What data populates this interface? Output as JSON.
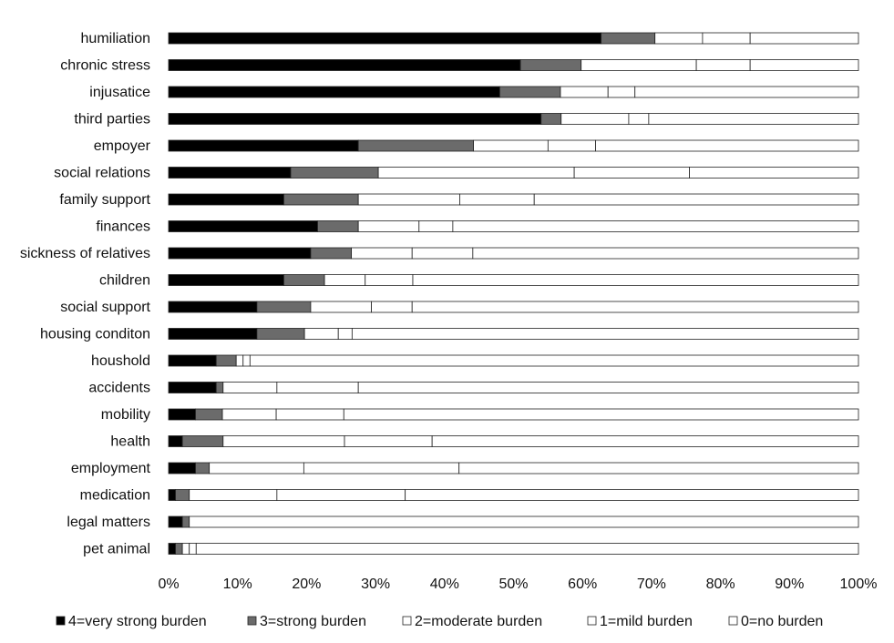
{
  "chart_data": {
    "type": "bar",
    "orientation": "horizontal",
    "stacked": "percent",
    "categories": [
      "humiliation",
      "chronic stress",
      "injusatice",
      "third parties",
      "empoyer",
      "social relations",
      "family support",
      "finances",
      "sickness of relatives",
      "children",
      "social support",
      "housing conditon",
      "houshold",
      "accidents",
      "mobility",
      "health",
      "employment",
      "medication",
      "legal matters",
      "pet animal"
    ],
    "series": [
      {
        "name": "4=very strong burden",
        "color": "#000000",
        "values": [
          62.7,
          51,
          48,
          54,
          27.5,
          17.7,
          16.7,
          21.6,
          20.6,
          16.7,
          12.8,
          12.8,
          6.9,
          6.9,
          3.9,
          2,
          3.9,
          1,
          2,
          1
        ]
      },
      {
        "name": "3=strong burden",
        "color": "#6b6b6b",
        "values": [
          7.8,
          8.8,
          8.8,
          2.9,
          16.7,
          12.7,
          10.8,
          5.9,
          5.9,
          5.9,
          7.8,
          6.9,
          2.9,
          1,
          3.9,
          5.9,
          2,
          2,
          1,
          1
        ]
      },
      {
        "name": "2=moderate burden",
        "color": "#ffffff",
        "values": [
          6.9,
          16.7,
          6.9,
          9.8,
          10.8,
          28.4,
          14.7,
          8.8,
          8.8,
          5.9,
          8.8,
          4.9,
          1,
          7.8,
          7.8,
          17.6,
          13.7,
          12.7,
          0,
          1
        ]
      },
      {
        "name": "1=mild burden",
        "color": "#ffffff",
        "values": [
          6.9,
          7.8,
          3.9,
          2.9,
          6.9,
          16.7,
          10.8,
          4.9,
          8.8,
          6.9,
          5.9,
          2,
          1,
          11.8,
          9.8,
          12.7,
          22.5,
          18.6,
          0,
          1
        ]
      },
      {
        "name": "0=no burden",
        "color": "#ffffff",
        "values": [
          15.7,
          15.7,
          32.4,
          30.4,
          38.1,
          24.5,
          47,
          58.8,
          55.9,
          64.6,
          64.7,
          73.4,
          88.2,
          72.5,
          74.6,
          61.8,
          57.9,
          65.7,
          97,
          96
        ]
      }
    ],
    "x_ticks": [
      "0%",
      "10%",
      "20%",
      "30%",
      "40%",
      "50%",
      "60%",
      "70%",
      "80%",
      "90%",
      "100%"
    ],
    "xlim": [
      0,
      100
    ],
    "grid": false,
    "legend_position": "bottom"
  }
}
